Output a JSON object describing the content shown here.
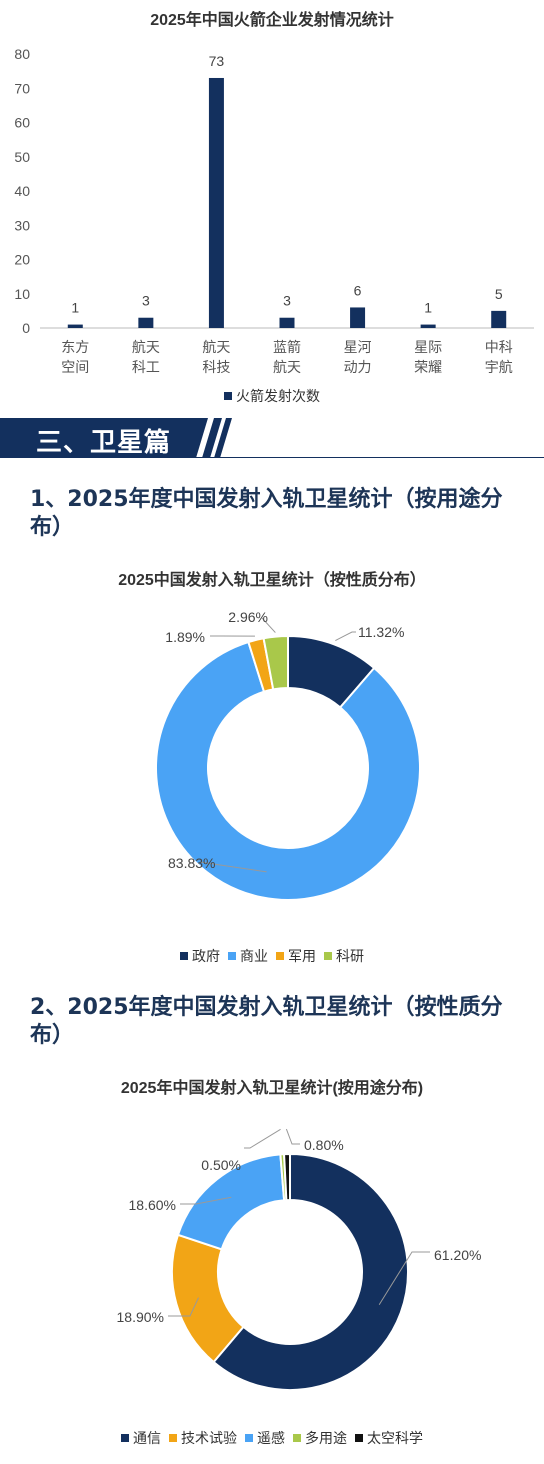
{
  "chart_data": [
    {
      "type": "bar",
      "title": "2025年中国火箭企业发射情况统计",
      "categories": [
        "东方\n空间",
        "航天\n科工",
        "航天\n科技",
        "蓝箭\n航天",
        "星河\n动力",
        "星际\n荣耀",
        "中科\n宇航"
      ],
      "series": [
        {
          "name": "火箭发射次数",
          "values": [
            1,
            3,
            73,
            3,
            6,
            1,
            5
          ]
        }
      ],
      "ylim": [
        0,
        80
      ],
      "yticks": [
        "0",
        "10",
        "20",
        "30",
        "40",
        "50",
        "60",
        "70",
        "80"
      ],
      "legend": "bottom",
      "color": "#13305e"
    },
    {
      "type": "pie",
      "title": "2025中国发射入轨卫星统计（按性质分布）",
      "labels": [
        "政府",
        "商业",
        "军用",
        "科研"
      ],
      "values": [
        11.32,
        83.83,
        1.89,
        2.96
      ],
      "value_labels": [
        "11.32%",
        "83.83%",
        "1.89%",
        "2.96%"
      ],
      "colors": [
        "#13305e",
        "#4aa3f5",
        "#f2a516",
        "#a9c84a"
      ],
      "legend": "bottom"
    },
    {
      "type": "pie",
      "title": "2025年中国发射入轨卫星统计(按用途分布)",
      "labels": [
        "通信",
        "技术试验",
        "遥感",
        "多用途",
        "太空科学"
      ],
      "values": [
        61.2,
        18.9,
        18.6,
        0.5,
        0.8
      ],
      "value_labels": [
        "61.20%",
        "18.90%",
        "18.60%",
        "0.50%",
        "0.80%"
      ],
      "colors": [
        "#13305e",
        "#f2a516",
        "#4aa3f5",
        "#a9c84a",
        "#111111"
      ],
      "legend": "bottom"
    }
  ],
  "section": {
    "title": "三、卫星篇"
  },
  "headings": {
    "h1": "1、2025年度中国发射入轨卫星统计（按用途分布）",
    "h2": "2、2025年度中国发射入轨卫星统计（按性质分布）"
  },
  "colors": {
    "navy": "#13305e",
    "heading": "#1d3557"
  }
}
